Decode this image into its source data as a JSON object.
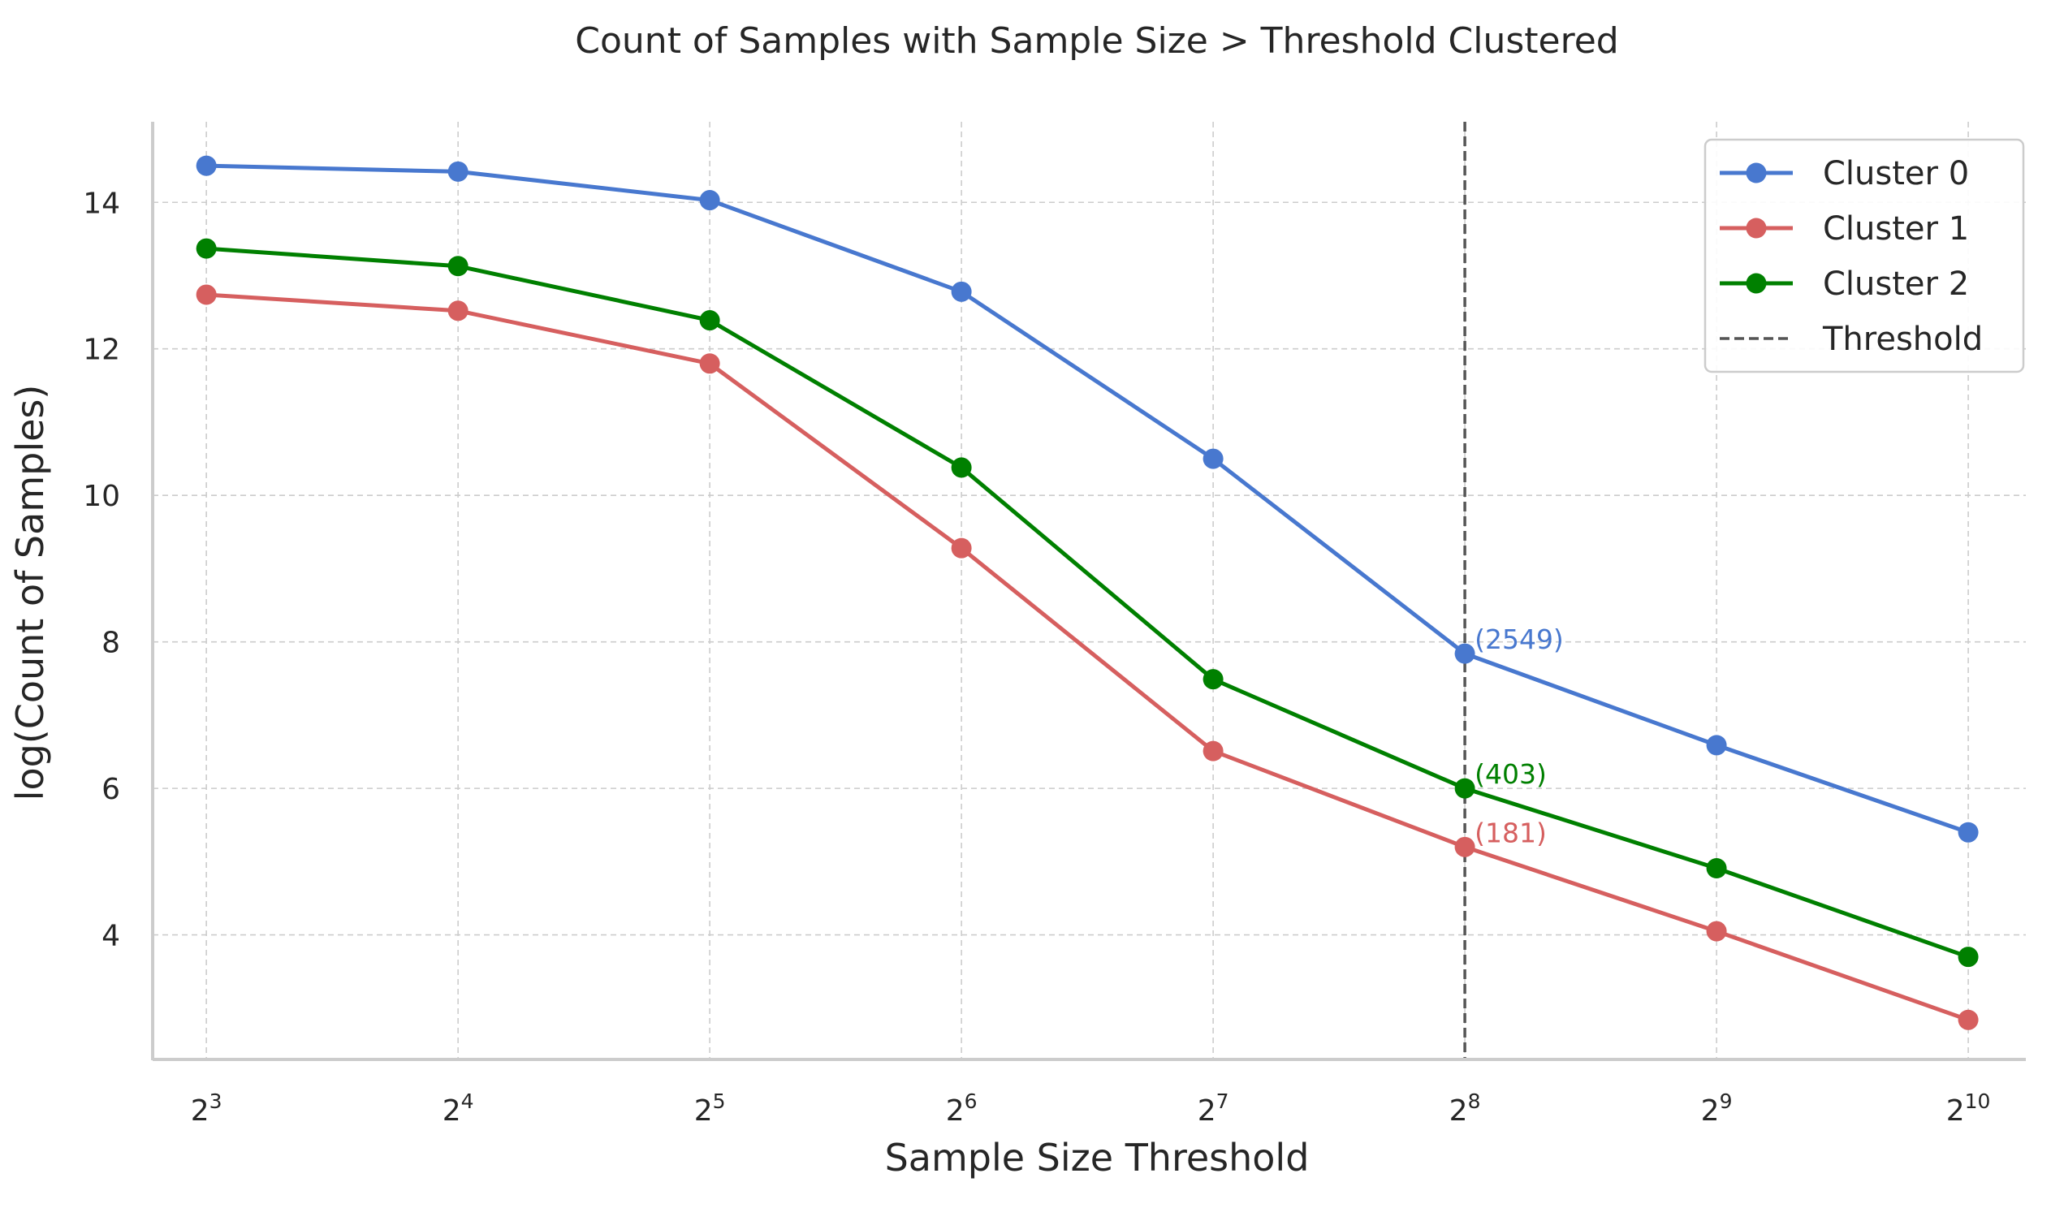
{
  "chart_data": {
    "type": "line",
    "title": "Count of Samples with Sample Size > Threshold Clustered",
    "xlabel": "Sample Size Threshold",
    "ylabel": "log(Count of Samples)",
    "x_scale": "log2",
    "x": [
      8,
      16,
      32,
      64,
      128,
      256,
      512,
      1024
    ],
    "x_tick_labels": [
      {
        "base": "2",
        "exp": "3"
      },
      {
        "base": "2",
        "exp": "4"
      },
      {
        "base": "2",
        "exp": "5"
      },
      {
        "base": "2",
        "exp": "6"
      },
      {
        "base": "2",
        "exp": "7"
      },
      {
        "base": "2",
        "exp": "8"
      },
      {
        "base": "2",
        "exp": "9"
      },
      {
        "base": "2",
        "exp": "10"
      }
    ],
    "y_ticks": [
      4,
      6,
      8,
      10,
      12,
      14
    ],
    "xlim": [
      6.9,
      1200
    ],
    "ylim": [
      2.3,
      15.1
    ],
    "grid": true,
    "legend_position": "top-right",
    "series": [
      {
        "name": "Cluster 0",
        "color": "#4878cf",
        "values": [
          14.5,
          14.42,
          14.03,
          12.78,
          10.5,
          7.84,
          6.59,
          5.4
        ]
      },
      {
        "name": "Cluster 1",
        "color": "#d65f5f",
        "values": [
          12.74,
          12.52,
          11.8,
          9.28,
          6.51,
          5.2,
          4.05,
          2.84
        ]
      },
      {
        "name": "Cluster 2",
        "color": "#008000",
        "values": [
          13.37,
          13.13,
          12.39,
          10.38,
          7.49,
          6.0,
          4.91,
          3.7
        ]
      }
    ],
    "threshold": {
      "name": "Threshold",
      "x": 256,
      "color": "#555555"
    },
    "annotations": [
      {
        "text": "(2549)",
        "x": 256,
        "y": 7.84,
        "color": "#4878cf"
      },
      {
        "text": "(403)",
        "x": 256,
        "y": 6.0,
        "color": "#008000"
      },
      {
        "text": "(181)",
        "x": 256,
        "y": 5.2,
        "color": "#d65f5f"
      }
    ]
  }
}
